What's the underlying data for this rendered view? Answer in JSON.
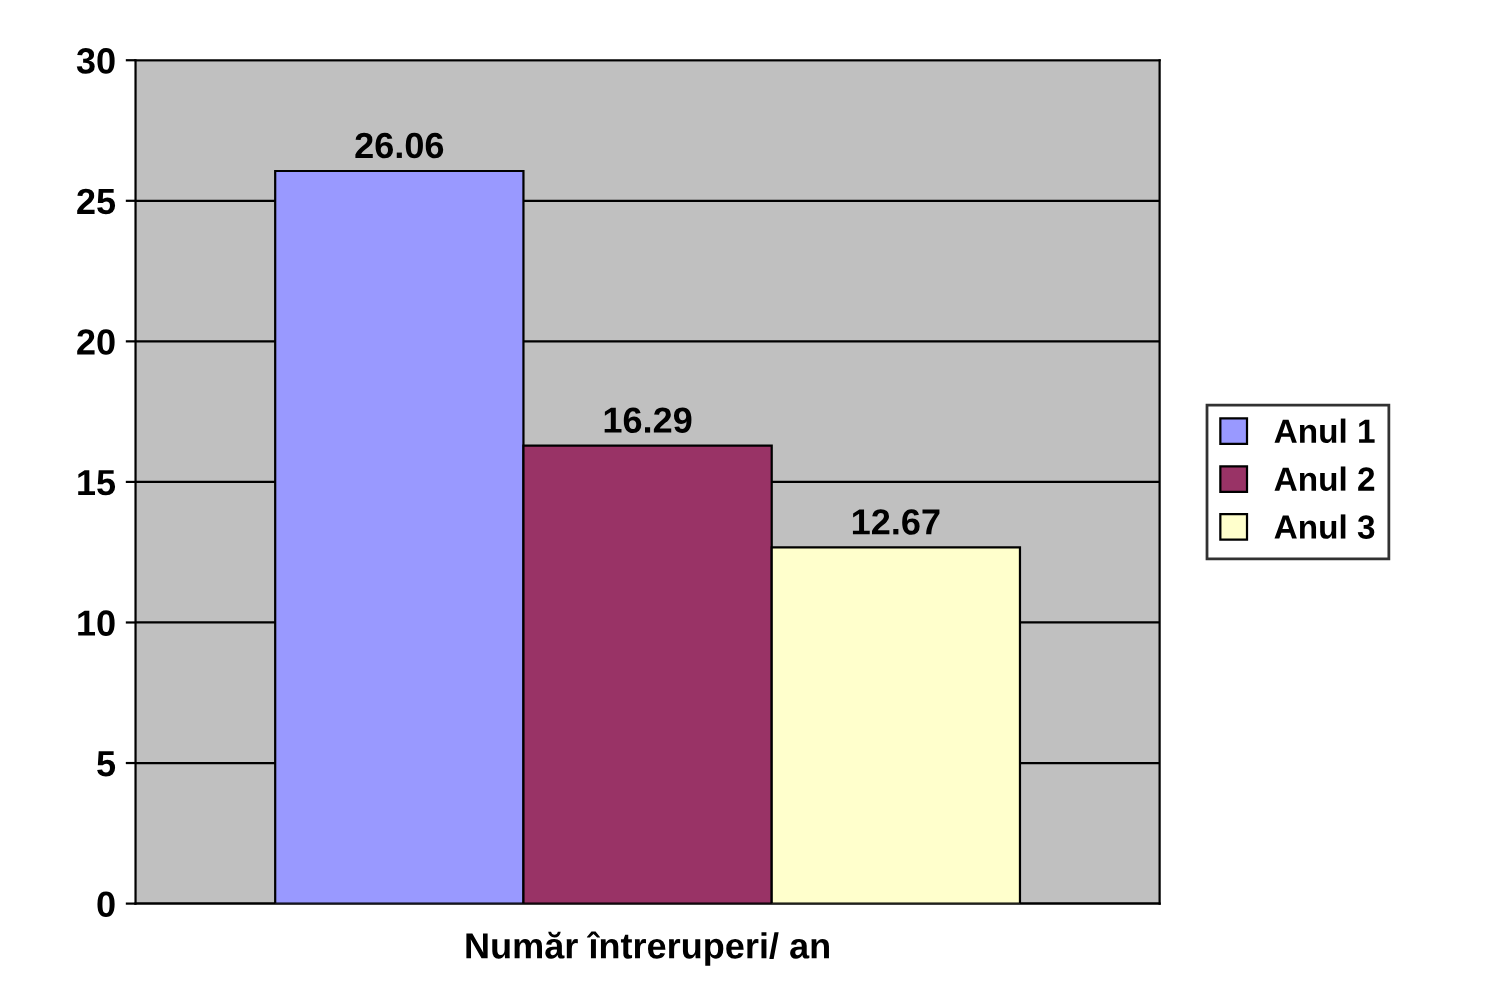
{
  "chart_data": {
    "type": "bar",
    "categories": [
      "Număr întreruperi/ an"
    ],
    "series": [
      {
        "name": "Anul 1",
        "color": "#9999ff",
        "values": [
          26.06
        ]
      },
      {
        "name": "Anul 2",
        "color": "#993366",
        "values": [
          16.29
        ]
      },
      {
        "name": "Anul 3",
        "color": "#ffffcc",
        "values": [
          12.67
        ]
      }
    ],
    "ylim": [
      0,
      30
    ],
    "yticks": [
      0,
      5,
      10,
      15,
      20,
      25,
      30
    ],
    "grid": "y",
    "legend": "right",
    "data_labels": true
  }
}
